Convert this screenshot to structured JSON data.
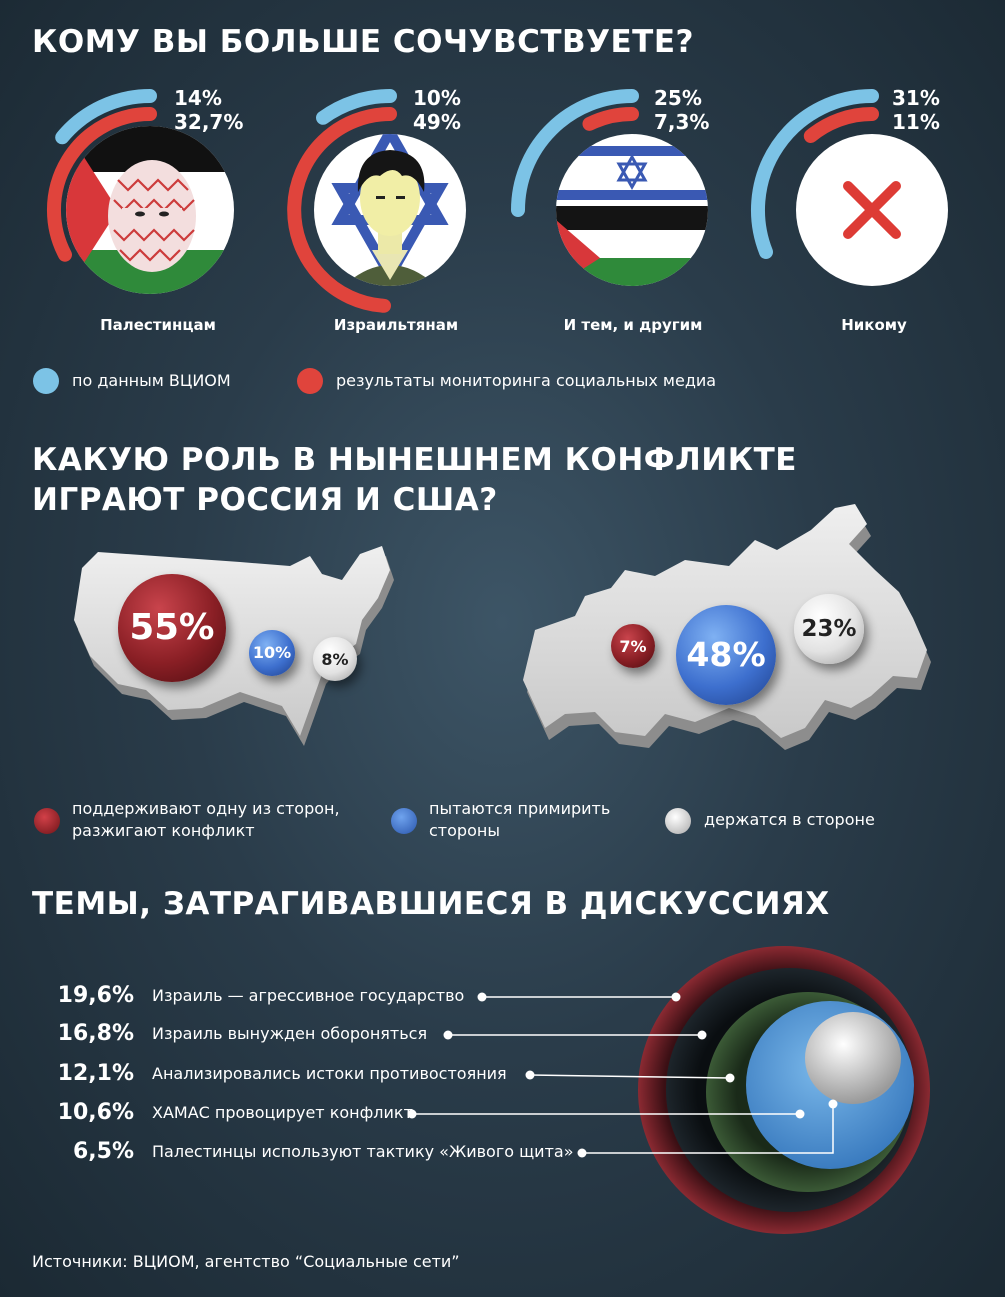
{
  "section1": {
    "title": "КОМУ ВЫ БОЛЬШЕ СОЧУВСТВУЕТЕ?",
    "legend": {
      "wciom": "по данным ВЦИОМ",
      "social": "результаты мониторинга социальных медиа",
      "wciom_color": "#7cc3e6",
      "social_color": "#e0443c"
    },
    "groups": [
      {
        "label": "Палестинцам",
        "wciom": "14%",
        "social": "32,7%",
        "wciom_value": 14,
        "social_value": 32.7,
        "icon": "palestine-flag-icon"
      },
      {
        "label": "Израильтянам",
        "wciom": "10%",
        "social": "49%",
        "wciom_value": 10,
        "social_value": 49,
        "icon": "israeli-soldier-icon"
      },
      {
        "label": "И тем, и другим",
        "wciom": "25%",
        "social": "7,3%",
        "wciom_value": 25,
        "social_value": 7.3,
        "icon": "combined-flags-icon"
      },
      {
        "label": "Никому",
        "wciom": "31%",
        "social": "11%",
        "wciom_value": 31,
        "social_value": 11,
        "icon": "red-cross-icon"
      }
    ]
  },
  "section2": {
    "title_line1": "КАКУЮ РОЛЬ В НЫНЕШНЕМ КОНФЛИКТЕ",
    "title_line2": "ИГРАЮТ РОССИЯ И США?",
    "usa": {
      "support": "55%",
      "reconcile": "10%",
      "aside": "8%"
    },
    "russia": {
      "support": "7%",
      "reconcile": "48%",
      "aside": "23%"
    },
    "legend": {
      "support": "поддерживают одну из сторон, разжигают конфликт",
      "support_line1": "поддерживают одну из сторон,",
      "support_line2": "разжигают конфликт",
      "reconcile_line1": "пытаются примирить",
      "reconcile_line2": "стороны",
      "aside": "держатся в стороне",
      "support_color": "#a0262c",
      "reconcile_color": "#3f76d2",
      "aside_color": "#eeeeee"
    }
  },
  "section3": {
    "title": "ТЕМЫ, ЗАТРАГИВАВШИЕСЯ В ДИСКУССИЯХ",
    "topics": [
      {
        "pct": "19,6%",
        "value": 19.6,
        "text": "Израиль — агрессивное государство",
        "color": "#7a1e26"
      },
      {
        "pct": "16,8%",
        "value": 16.8,
        "text": "Израиль вынужден обороняться",
        "color": "#141a1f"
      },
      {
        "pct": "12,1%",
        "value": 12.1,
        "text": "Анализировались истоки противостояния",
        "color": "#2f4a2c"
      },
      {
        "pct": "10,6%",
        "value": 10.6,
        "text": "ХАМАС провоцирует конфликт",
        "color": "#5aa0d8"
      },
      {
        "pct": "6,5%",
        "value": 6.5,
        "text": "Палестинцы используют тактику «Живого щита»",
        "color": "#dddddd"
      }
    ]
  },
  "chart_data": [
    {
      "type": "bar",
      "title": "КОМУ ВЫ БОЛЬШЕ СОЧУВСТВУЕТЕ?",
      "categories": [
        "Палестинцам",
        "Израильтянам",
        "И тем, и другим",
        "Никому"
      ],
      "series": [
        {
          "name": "по данным ВЦИОМ",
          "values": [
            14,
            10,
            25,
            31
          ]
        },
        {
          "name": "результаты мониторинга социальных медиа",
          "values": [
            32.7,
            49,
            7.3,
            11
          ]
        }
      ]
    },
    {
      "type": "scatter",
      "title": "КАКУЮ РОЛЬ В НЫНЕШНЕМ КОНФЛИКТЕ ИГРАЮТ РОССИЯ И США?",
      "categories": [
        "поддерживают одну из сторон, разжигают конфликт",
        "пытаются примирить стороны",
        "держатся в стороне"
      ],
      "series": [
        {
          "name": "",
          "values": [
            55,
            10,
            8
          ]
        },
        {
          "name": "",
          "values": [
            7,
            48,
            23
          ]
        }
      ]
    },
    {
      "type": "pie",
      "title": "ТЕМЫ, ЗАТРАГИВАВШИЕСЯ В ДИСКУССИЯХ",
      "categories": [
        "Израиль — агрессивное государство",
        "Израиль вынужден обороняться",
        "Анализировались истоки противостояния",
        "ХАМАС провоцирует конфликт",
        "Палестинцы используют тактику «Живого щита»"
      ],
      "values": [
        19.6,
        16.8,
        12.1,
        10.6,
        6.5
      ]
    }
  ],
  "source": "Источники: ВЦИОМ, агентство “Социальные сети”"
}
